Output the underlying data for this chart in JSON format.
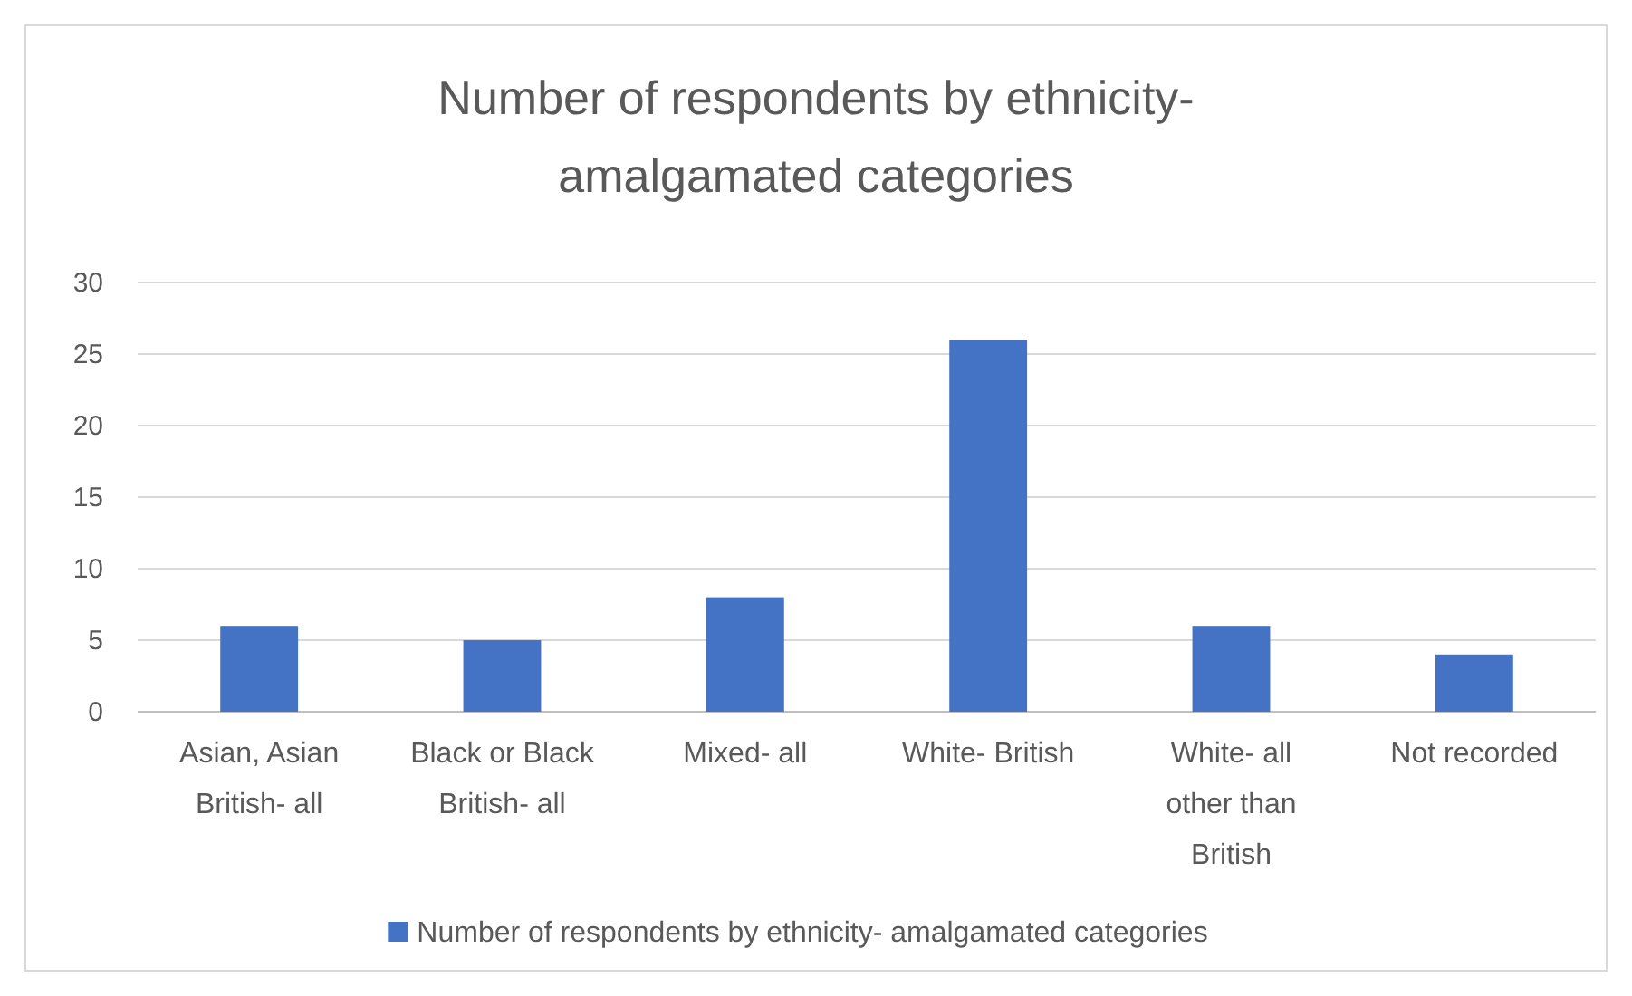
{
  "chart_data": {
    "type": "bar",
    "title": "Number of respondents by ethnicity- amalgamated categories",
    "categories": [
      "Asian, Asian British- all",
      "Black or Black British- all",
      "Mixed- all",
      "White- British",
      "White- all other than British",
      "Not recorded"
    ],
    "series": [
      {
        "name": "Number of respondents by ethnicity- amalgamated categories",
        "color": "#4472c4",
        "values": [
          6,
          5,
          8,
          26,
          6,
          4
        ]
      }
    ],
    "ylim": [
      0,
      30
    ],
    "yticks": [
      0,
      5,
      10,
      15,
      20,
      25,
      30
    ],
    "grid": "y",
    "legend": "bottom"
  }
}
